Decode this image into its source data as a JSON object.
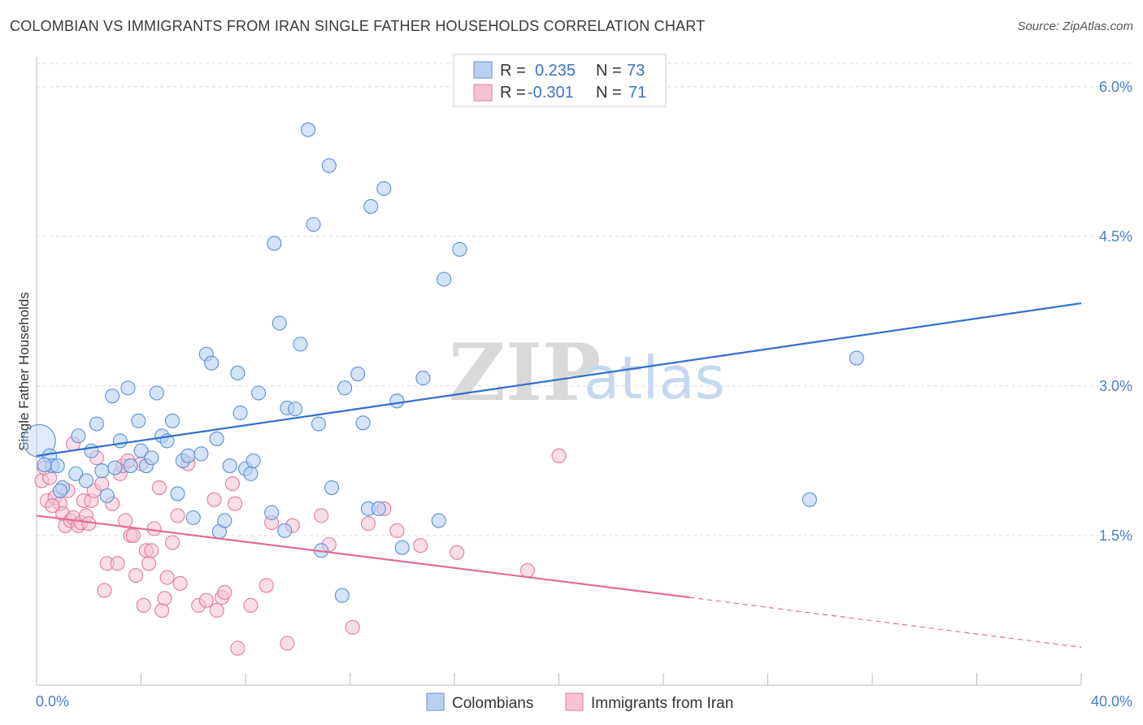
{
  "title": "COLOMBIAN VS IMMIGRANTS FROM IRAN SINGLE FATHER HOUSEHOLDS CORRELATION CHART",
  "source": "Source: ZipAtlas.com",
  "watermark": {
    "zip": "ZIP",
    "atlas": "atlas"
  },
  "legend": {
    "rows": [
      {
        "r_label": "R =",
        "r_value": "0.235",
        "n_label": "N =",
        "n_value": "73"
      },
      {
        "r_label": "R =",
        "r_value": "-0.301",
        "n_label": "N =",
        "n_value": "71"
      }
    ]
  },
  "bottom_legend": {
    "series1": "Colombians",
    "series2": "Immigrants from Iran"
  },
  "colors": {
    "blue_fill": "#b8d1f3",
    "blue_stroke": "#5b8fd6",
    "blue_line": "#2f6fcf",
    "pink_fill": "#f6c3d4",
    "pink_stroke": "#e27aa0",
    "pink_line": "#e36b96",
    "grid": "#dcdcdc",
    "tick_text": "#4a7fd0"
  },
  "chart_data": {
    "type": "scatter",
    "title": "COLOMBIAN VS IMMIGRANTS FROM IRAN SINGLE FATHER HOUSEHOLDS CORRELATION CHART",
    "xlabel": "",
    "ylabel": "Single Father Households",
    "xlim": [
      0,
      40
    ],
    "ylim": [
      0,
      6.3
    ],
    "x_tick_labels": [
      "0.0%",
      "40.0%"
    ],
    "y_ticks": [
      1.5,
      3.0,
      4.5,
      6.0
    ],
    "y_tick_labels": [
      "1.5%",
      "3.0%",
      "4.5%",
      "6.0%"
    ],
    "grid": true,
    "legend_placement": "top-center",
    "series": [
      {
        "name": "Colombians",
        "R": 0.235,
        "N": 73,
        "trend": {
          "x": [
            0,
            40
          ],
          "y": [
            2.3,
            3.83
          ]
        },
        "points": [
          [
            0.1,
            2.45
          ],
          [
            0.5,
            2.3
          ],
          [
            0.6,
            2.2
          ],
          [
            0.8,
            2.2
          ],
          [
            1.0,
            1.98
          ],
          [
            0.9,
            1.95
          ],
          [
            1.5,
            2.12
          ],
          [
            1.6,
            2.5
          ],
          [
            1.9,
            2.05
          ],
          [
            2.1,
            2.35
          ],
          [
            2.3,
            2.62
          ],
          [
            2.5,
            2.15
          ],
          [
            2.7,
            1.9
          ],
          [
            2.9,
            2.9
          ],
          [
            3.0,
            2.18
          ],
          [
            3.2,
            2.45
          ],
          [
            3.5,
            2.98
          ],
          [
            3.6,
            2.2
          ],
          [
            3.9,
            2.65
          ],
          [
            4.0,
            2.35
          ],
          [
            4.2,
            2.2
          ],
          [
            4.4,
            2.28
          ],
          [
            4.6,
            2.93
          ],
          [
            4.8,
            2.5
          ],
          [
            5.0,
            2.45
          ],
          [
            5.2,
            2.65
          ],
          [
            5.4,
            1.92
          ],
          [
            5.6,
            2.25
          ],
          [
            5.8,
            2.3
          ],
          [
            6.0,
            1.68
          ],
          [
            6.3,
            2.32
          ],
          [
            6.5,
            3.32
          ],
          [
            6.7,
            3.23
          ],
          [
            6.9,
            2.47
          ],
          [
            7.0,
            1.54
          ],
          [
            7.2,
            1.65
          ],
          [
            7.4,
            2.2
          ],
          [
            7.7,
            3.13
          ],
          [
            7.8,
            2.73
          ],
          [
            8.0,
            2.17
          ],
          [
            8.2,
            2.12
          ],
          [
            8.3,
            2.25
          ],
          [
            8.5,
            2.93
          ],
          [
            9.0,
            1.73
          ],
          [
            9.1,
            4.43
          ],
          [
            9.3,
            3.63
          ],
          [
            9.5,
            1.55
          ],
          [
            9.6,
            2.78
          ],
          [
            9.9,
            2.77
          ],
          [
            10.1,
            3.42
          ],
          [
            10.4,
            5.57
          ],
          [
            10.6,
            4.62
          ],
          [
            10.8,
            2.62
          ],
          [
            10.9,
            1.35
          ],
          [
            11.2,
            5.21
          ],
          [
            11.3,
            1.98
          ],
          [
            11.7,
            0.9
          ],
          [
            11.8,
            2.98
          ],
          [
            12.3,
            3.12
          ],
          [
            12.5,
            2.63
          ],
          [
            12.7,
            1.77
          ],
          [
            12.8,
            4.8
          ],
          [
            13.1,
            1.77
          ],
          [
            13.3,
            4.98
          ],
          [
            13.8,
            2.85
          ],
          [
            14.0,
            1.38
          ],
          [
            14.8,
            3.08
          ],
          [
            15.4,
            1.65
          ],
          [
            15.6,
            4.07
          ],
          [
            16.2,
            4.37
          ],
          [
            29.6,
            1.86
          ],
          [
            31.4,
            3.28
          ],
          [
            0.3,
            2.21
          ]
        ]
      },
      {
        "name": "Immigrants from Iran",
        "R": -0.301,
        "N": 71,
        "trend": {
          "x": [
            0,
            25
          ],
          "y": [
            1.7,
            0.88
          ]
        },
        "trend_dashed": {
          "x": [
            25,
            40
          ],
          "y": [
            0.88,
            0.38
          ]
        },
        "points": [
          [
            0.2,
            2.05
          ],
          [
            0.4,
            1.85
          ],
          [
            0.5,
            2.08
          ],
          [
            0.7,
            1.88
          ],
          [
            0.9,
            1.82
          ],
          [
            1.0,
            1.72
          ],
          [
            1.1,
            1.6
          ],
          [
            1.2,
            1.95
          ],
          [
            1.3,
            1.65
          ],
          [
            1.4,
            1.68
          ],
          [
            1.4,
            2.42
          ],
          [
            1.6,
            1.6
          ],
          [
            1.7,
            1.63
          ],
          [
            1.8,
            1.85
          ],
          [
            1.9,
            1.7
          ],
          [
            2.0,
            1.62
          ],
          [
            2.1,
            1.85
          ],
          [
            2.2,
            1.95
          ],
          [
            2.3,
            2.28
          ],
          [
            2.5,
            2.02
          ],
          [
            2.6,
            0.95
          ],
          [
            2.7,
            1.22
          ],
          [
            2.9,
            1.82
          ],
          [
            3.1,
            1.22
          ],
          [
            3.2,
            2.12
          ],
          [
            3.3,
            2.2
          ],
          [
            3.4,
            1.65
          ],
          [
            3.5,
            2.25
          ],
          [
            3.6,
            1.5
          ],
          [
            3.7,
            1.5
          ],
          [
            3.8,
            1.1
          ],
          [
            4.0,
            2.22
          ],
          [
            4.1,
            0.8
          ],
          [
            4.2,
            1.35
          ],
          [
            4.3,
            1.22
          ],
          [
            4.4,
            1.35
          ],
          [
            4.5,
            1.57
          ],
          [
            4.7,
            1.98
          ],
          [
            4.8,
            0.75
          ],
          [
            4.9,
            0.87
          ],
          [
            5.0,
            1.08
          ],
          [
            5.2,
            1.43
          ],
          [
            5.4,
            1.7
          ],
          [
            5.5,
            1.02
          ],
          [
            5.8,
            2.22
          ],
          [
            6.2,
            0.8
          ],
          [
            6.5,
            0.85
          ],
          [
            6.8,
            1.86
          ],
          [
            6.9,
            0.75
          ],
          [
            7.1,
            0.88
          ],
          [
            7.2,
            0.93
          ],
          [
            7.5,
            2.02
          ],
          [
            7.6,
            1.82
          ],
          [
            7.7,
            0.37
          ],
          [
            8.2,
            0.8
          ],
          [
            8.8,
            1.0
          ],
          [
            9.0,
            1.63
          ],
          [
            9.6,
            0.42
          ],
          [
            9.8,
            1.6
          ],
          [
            10.9,
            1.7
          ],
          [
            11.2,
            1.41
          ],
          [
            12.1,
            0.58
          ],
          [
            12.7,
            1.62
          ],
          [
            13.3,
            1.77
          ],
          [
            13.8,
            1.55
          ],
          [
            14.7,
            1.4
          ],
          [
            16.1,
            1.33
          ],
          [
            18.8,
            1.15
          ],
          [
            20.0,
            2.3
          ],
          [
            0.3,
            2.18
          ],
          [
            0.6,
            1.8
          ]
        ]
      }
    ]
  }
}
